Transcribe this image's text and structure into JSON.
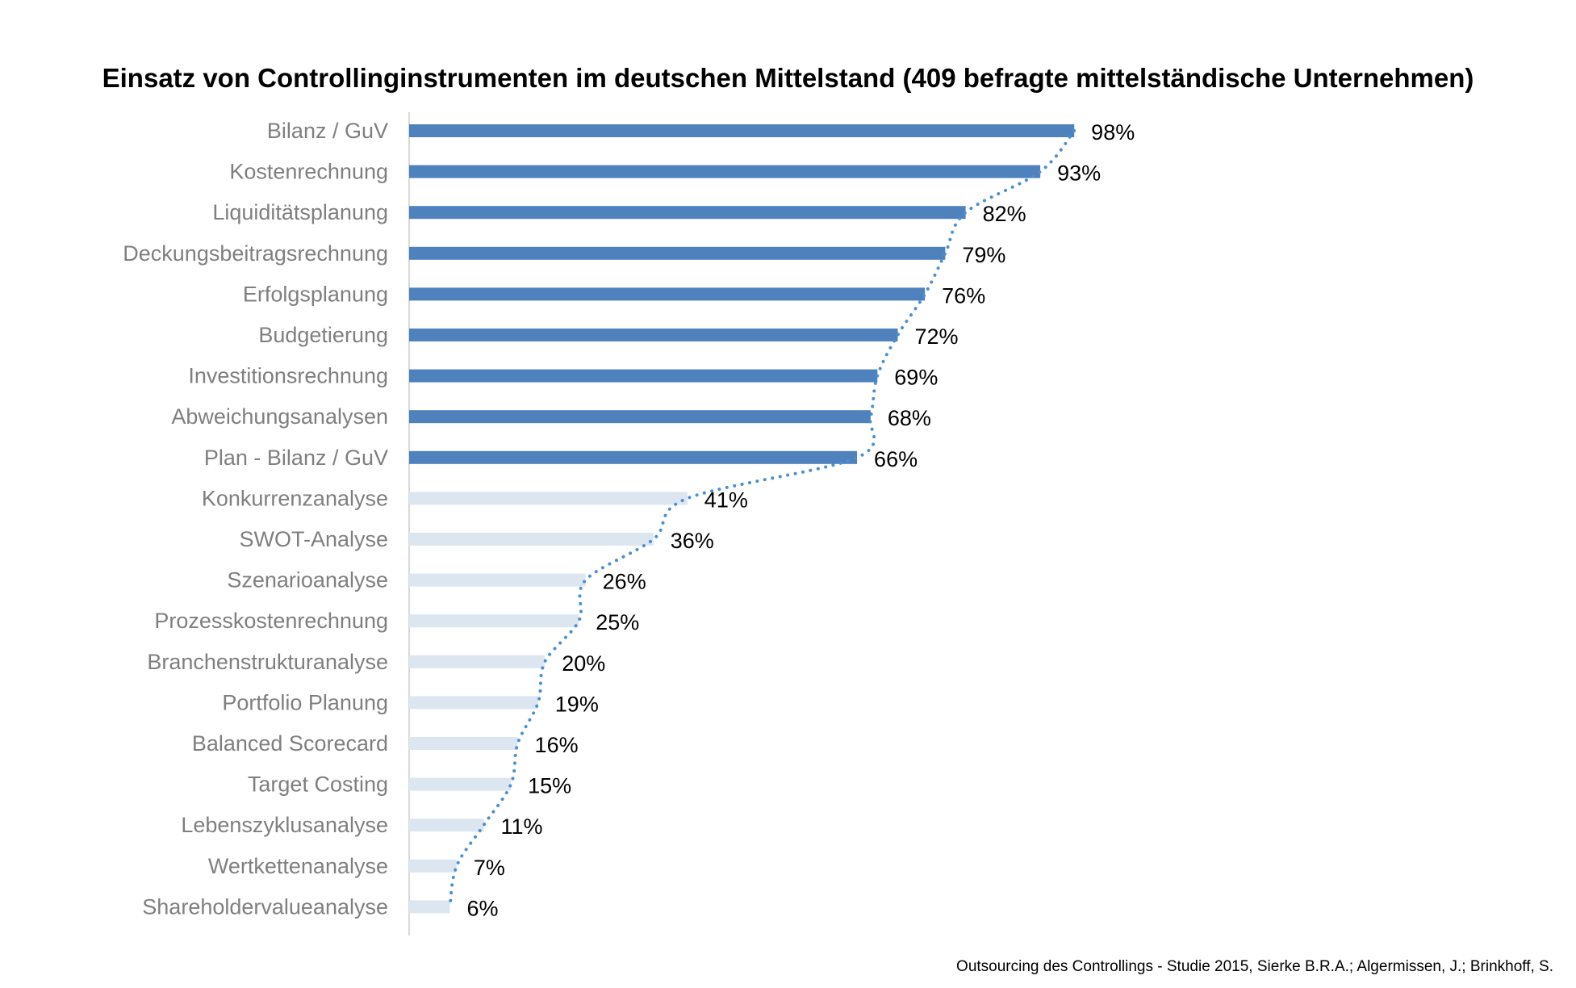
{
  "chart_data": {
    "type": "bar",
    "orientation": "horizontal",
    "title": "Einsatz von Controllinginstrumenten im deutschen Mittelstand (409 befragte mittelständische Unternehmen)",
    "source": "Outsourcing des Controllings - Studie 2015, Sierke B.R.A.; Algermissen, J.; Brinkhoff, S.",
    "categories": [
      "Bilanz / GuV",
      "Kostenrechnung",
      "Liquiditätsplanung",
      "Deckungsbeitragsrechnung",
      "Erfolgsplanung",
      "Budgetierung",
      "Investitionsrechnung",
      "Abweichungsanalysen",
      "Plan - Bilanz / GuV",
      "Konkurrenzanalyse",
      "SWOT-Analyse",
      "Szenarioanalyse",
      "Prozesskostenrechnung",
      "Branchenstrukturanalyse",
      "Portfolio Planung",
      "Balanced Scorecard",
      "Target Costing",
      "Lebenszyklusanalyse",
      "Wertkettenanalyse",
      "Shareholdervalueanalyse"
    ],
    "values": [
      98,
      93,
      82,
      79,
      76,
      72,
      69,
      68,
      66,
      41,
      36,
      26,
      25,
      20,
      19,
      16,
      15,
      11,
      7,
      6
    ],
    "data_labels": [
      "98%",
      "93%",
      "82%",
      "79%",
      "76%",
      "72%",
      "69%",
      "68%",
      "66%",
      "41%",
      "36%",
      "26%",
      "25%",
      "20%",
      "19%",
      "16%",
      "15%",
      "11%",
      "7%",
      "6%"
    ],
    "highlight_count": 9,
    "xlim": [
      0,
      100
    ],
    "grid": false,
    "trendline": "dotted",
    "colors": {
      "highlight": "#4f81bd",
      "muted": "#dce6f1",
      "trendline": "#4a90d0",
      "category_label": "#7f7f7f",
      "value_label": "#000000",
      "axis": "#d9d9d9"
    }
  }
}
